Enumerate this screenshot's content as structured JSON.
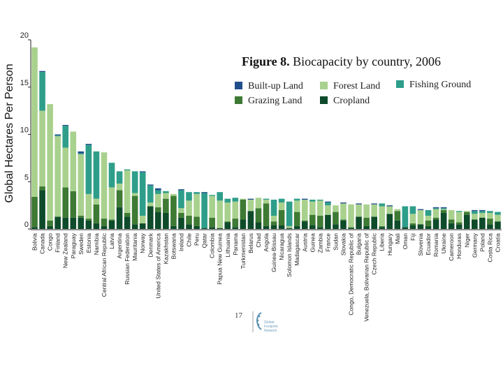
{
  "chart_data": {
    "type": "bar",
    "stacked": true,
    "title_bold": "Figure 8.",
    "title_rest": "Biocapacity by country, 2006",
    "xlabel": "",
    "ylabel": "Global Hectares Per Person",
    "ylim": [
      0,
      20
    ],
    "yticks": [
      0,
      5,
      10,
      15,
      20
    ],
    "categories": [
      "Bolivia",
      "Canada",
      "Congo",
      "Finland",
      "New Zealand",
      "Paraguay",
      "Sweden",
      "Estonia",
      "Namibia",
      "Central African Republic",
      "Latvia",
      "Argentina",
      "Russian Federation",
      "Mauritania",
      "Norway",
      "Denmark",
      "United States of America",
      "Kazakhstan",
      "Botswana",
      "Ireland",
      "Chile",
      "Peru",
      "Qatar",
      "Colombia",
      "Papua New Guinea",
      "Lithuania",
      "Panama",
      "Turkmenistan",
      "Belarus",
      "Chad",
      "Angola",
      "Guinea-Bissau",
      "Nicaragua",
      "Solomon Islands",
      "Madagascar",
      "Austria",
      "Guinea",
      "Zambia",
      "France",
      "Sudan",
      "Slovakia",
      "Congo, Democratic Republic of",
      "Bulgaria",
      "Venezuela, Bolivarian Republic of",
      "Czech Republic",
      "Liberia",
      "Hungary",
      "Mali",
      "Oman",
      "Fiji",
      "Slovenia",
      "Ecuador",
      "Romania",
      "Ukraine",
      "Cameroon",
      "Honduras",
      "Niger",
      "Germany",
      "Poland",
      "Costa Rica",
      "Croatia"
    ],
    "series": [
      {
        "name": "Cropland",
        "color": "#0e4b2a",
        "values": [
          0.2,
          4.1,
          0.3,
          1.3,
          1.2,
          1.2,
          1.2,
          0.9,
          0.6,
          0.3,
          0.9,
          2.3,
          1.3,
          0.5,
          0.6,
          2.4,
          1.8,
          1.7,
          0.3,
          1.2,
          0.5,
          0.3,
          0.1,
          0.2,
          0.1,
          0.7,
          0.2,
          1.0,
          1.9,
          0.7,
          0.3,
          0.4,
          0.4,
          0.1,
          0.3,
          0.8,
          0.4,
          0.2,
          1.5,
          0.5,
          0.9,
          0.1,
          1.3,
          0.3,
          1.3,
          0.2,
          1.6,
          0.9,
          0.2,
          0.4,
          0.5,
          0.3,
          1.0,
          1.7,
          0.6,
          0.5,
          1.5,
          1.0,
          1.2,
          0.5,
          0.8
        ]
      },
      {
        "name": "Grazing Land",
        "color": "#3e7a34",
        "values": [
          3.2,
          0.4,
          0.6,
          0.0,
          3.2,
          2.8,
          0.2,
          0.2,
          2.0,
          0.8,
          0.1,
          1.8,
          0.4,
          3.0,
          0.0,
          0.0,
          0.5,
          1.5,
          3.2,
          0.5,
          0.9,
          1.0,
          0.0,
          1.0,
          0.0,
          0.1,
          0.9,
          2.1,
          0.0,
          1.5,
          2.4,
          0.4,
          1.6,
          0.0,
          1.5,
          0.1,
          1.1,
          1.2,
          0.0,
          1.3,
          0.1,
          0.1,
          0.0,
          0.9,
          0.0,
          0.1,
          0.0,
          1.0,
          0.0,
          0.2,
          0.0,
          0.6,
          0.2,
          0.3,
          0.4,
          0.2,
          0.3,
          0.0,
          0.0,
          0.6,
          0.0
        ]
      },
      {
        "name": "Forest Land",
        "color": "#a9d18e",
        "values": [
          15.8,
          8.0,
          12.3,
          8.5,
          4.2,
          6.3,
          6.5,
          2.6,
          0.6,
          7.0,
          3.4,
          0.7,
          4.5,
          0.3,
          0.8,
          0.4,
          1.4,
          0.6,
          0.2,
          0.5,
          1.6,
          2.4,
          0.0,
          2.3,
          2.9,
          2.0,
          1.8,
          0.1,
          1.2,
          1.1,
          0.4,
          0.6,
          0.8,
          0.2,
          1.2,
          2.2,
          1.4,
          1.6,
          1.0,
          0.7,
          1.7,
          2.4,
          1.3,
          1.4,
          1.3,
          2.1,
          0.8,
          0.2,
          0.0,
          1.0,
          1.5,
          0.5,
          0.9,
          0.1,
          1.0,
          1.1,
          0.1,
          0.6,
          0.5,
          0.6,
          0.7
        ]
      },
      {
        "name": "Fishing Ground",
        "color": "#2e9e8a",
        "values": [
          0.0,
          4.1,
          0.0,
          0.1,
          2.3,
          0.0,
          0.1,
          5.2,
          5.0,
          0.0,
          2.6,
          1.3,
          0.1,
          2.3,
          4.6,
          1.8,
          0.4,
          0.2,
          0.0,
          1.9,
          0.9,
          0.2,
          3.7,
          0.1,
          0.9,
          0.4,
          0.4,
          0.0,
          0.0,
          0.0,
          0.1,
          1.7,
          0.4,
          2.6,
          0.2,
          0.0,
          0.2,
          0.1,
          0.3,
          0.0,
          0.0,
          0.0,
          0.0,
          0.0,
          0.0,
          0.3,
          0.0,
          0.0,
          2.2,
          0.8,
          0.0,
          0.6,
          0.1,
          0.1,
          0.0,
          0.1,
          0.0,
          0.3,
          0.2,
          0.2,
          0.3
        ]
      },
      {
        "name": "Built-up Land",
        "color": "#1f4e8c",
        "values": [
          0.0,
          0.1,
          0.0,
          0.1,
          0.1,
          0.0,
          0.2,
          0.1,
          0.0,
          0.0,
          0.0,
          0.0,
          0.0,
          0.0,
          0.1,
          0.1,
          0.2,
          0.0,
          0.0,
          0.1,
          0.0,
          0.0,
          0.1,
          0.0,
          0.0,
          0.0,
          0.0,
          0.0,
          0.1,
          0.0,
          0.0,
          0.0,
          0.0,
          0.0,
          0.0,
          0.1,
          0.0,
          0.0,
          0.1,
          0.0,
          0.1,
          0.0,
          0.1,
          0.0,
          0.1,
          0.0,
          0.1,
          0.0,
          0.0,
          0.0,
          0.1,
          0.0,
          0.1,
          0.1,
          0.0,
          0.0,
          0.0,
          0.1,
          0.1,
          0.0,
          0.0
        ]
      }
    ],
    "legend": [
      {
        "name": "Built-up Land",
        "color": "#1f4e8c"
      },
      {
        "name": "Forest Land",
        "color": "#a9d18e"
      },
      {
        "name": "Fishing Ground",
        "color": "#2e9e8a"
      },
      {
        "name": "Grazing Land",
        "color": "#3e7a34"
      },
      {
        "name": "Cropland",
        "color": "#0e4b2a"
      }
    ]
  },
  "page_number": "17",
  "logo": {
    "name": "logo-mark",
    "line1": "Global",
    "line2": "Footprint",
    "line3": "Network"
  }
}
